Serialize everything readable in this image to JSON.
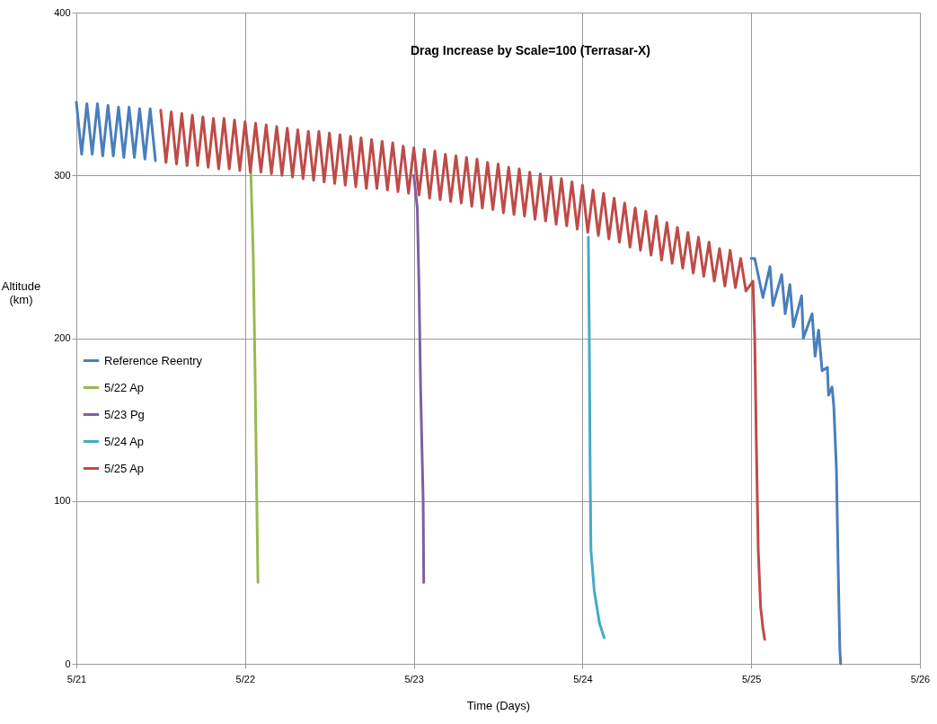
{
  "chart_data": {
    "type": "line",
    "title": "Drag Increase by Scale=100  (Terrasar-X)",
    "xlabel": "Time (Days)",
    "ylabel": "Altitude (km)",
    "xlim": [
      "--05-21",
      "--05-26"
    ],
    "xticks": [
      {
        "value": "--05-21",
        "label": "5/21"
      },
      {
        "value": "--05-22",
        "label": "5/22"
      },
      {
        "value": "--05-23",
        "label": "5/23"
      },
      {
        "value": "--05-24",
        "label": "5/24"
      },
      {
        "value": "--05-25",
        "label": "5/25"
      },
      {
        "value": "--05-26",
        "label": "5/26"
      }
    ],
    "ylim": [
      0,
      400
    ],
    "yticks": [
      0,
      100,
      200,
      300,
      400
    ],
    "grid": true,
    "legend": "left",
    "series": [
      {
        "name": "Reference Reentry",
        "color": "#4a7ebb",
        "x": [
          "--05-21T00:00",
          "--05-21T00:45",
          "--05-21T01:30",
          "--05-21T02:15",
          "--05-21T03:00",
          "--05-21T03:45",
          "--05-21T04:30",
          "--05-21T05:15",
          "--05-21T06:00",
          "--05-21T06:45",
          "--05-21T07:30",
          "--05-21T08:15",
          "--05-21T09:00",
          "--05-21T09:45",
          "--05-21T10:30",
          "--05-21T11:15",
          "--05-21T12:00",
          "--05-25T00:00",
          "--05-25T00:30",
          "--05-25T01:40",
          "--05-25T02:40",
          "--05-25T03:05",
          "--05-25T04:20",
          "--05-25T04:50",
          "--05-25T05:30",
          "--05-25T06:00",
          "--05-25T07:10",
          "--05-25T07:25",
          "--05-25T08:40",
          "--05-25T09:05",
          "--05-25T09:35",
          "--05-25T10:05",
          "--05-25T10:50",
          "--05-25T11:00",
          "--05-25T11:30",
          "--05-25T11:45",
          "--05-25T12:07",
          "--05-25T12:22",
          "--05-25T12:36",
          "--05-25T12:43"
        ],
        "values": [
          345,
          313,
          344,
          313,
          344,
          312,
          343,
          312,
          342,
          311,
          342,
          311,
          341,
          310,
          341,
          309,
          null,
          249,
          249,
          225,
          244,
          220,
          239,
          215,
          233,
          207,
          226,
          200,
          215,
          189,
          205,
          180,
          182,
          165,
          170,
          158,
          120,
          60,
          10,
          0
        ]
      },
      {
        "name": "5/22 Ap",
        "color": "#98b954",
        "x": [
          "--05-22T00:30",
          "--05-22T00:50",
          "--05-22T01:10",
          "--05-22T01:25",
          "--05-22T01:40",
          "--05-22T01:50"
        ],
        "values": [
          318,
          300,
          250,
          180,
          100,
          50
        ]
      },
      {
        "name": "5/23 Pg",
        "color": "#7d60a0",
        "x": [
          "--05-23T00:00",
          "--05-23T00:30",
          "--05-23T00:45",
          "--05-23T00:58",
          "--05-23T01:20",
          "--05-23T01:25"
        ],
        "values": [
          300,
          280,
          230,
          170,
          100,
          50
        ]
      },
      {
        "name": "5/24 Ap",
        "color": "#46aac5",
        "x": [
          "--05-24T00:50",
          "--05-24T00:58",
          "--05-24T01:05",
          "--05-24T01:12",
          "--05-24T01:40",
          "--05-24T02:25",
          "--05-24T03:05"
        ],
        "values": [
          262,
          200,
          120,
          70,
          45,
          25,
          16
        ]
      },
      {
        "name": "5/25 Ap",
        "color": "#be4b48",
        "x": [
          "--05-21T12:00",
          "--05-21T12:45",
          "--05-21T13:30",
          "--05-21T14:15",
          "--05-21T15:00",
          "--05-21T15:45",
          "--05-21T16:30",
          "--05-21T17:15",
          "--05-21T18:00",
          "--05-21T18:45",
          "--05-21T19:30",
          "--05-21T20:15",
          "--05-21T21:00",
          "--05-21T21:45",
          "--05-21T22:30",
          "--05-21T23:15",
          "--05-22T00:00",
          "--05-22T00:45",
          "--05-22T01:30",
          "--05-22T02:15",
          "--05-22T03:00",
          "--05-22T03:45",
          "--05-22T04:30",
          "--05-22T05:15",
          "--05-22T06:00",
          "--05-22T06:45",
          "--05-22T07:30",
          "--05-22T08:15",
          "--05-22T09:00",
          "--05-22T09:45",
          "--05-22T10:30",
          "--05-22T11:15",
          "--05-22T12:00",
          "--05-22T12:45",
          "--05-22T13:30",
          "--05-22T14:15",
          "--05-22T15:00",
          "--05-22T15:45",
          "--05-22T16:30",
          "--05-22T17:15",
          "--05-22T18:00",
          "--05-22T18:45",
          "--05-22T19:30",
          "--05-22T20:15",
          "--05-22T21:00",
          "--05-22T21:45",
          "--05-22T22:30",
          "--05-22T23:15",
          "--05-23T00:00",
          "--05-23T00:45",
          "--05-23T01:30",
          "--05-23T02:15",
          "--05-23T03:00",
          "--05-23T03:45",
          "--05-23T04:30",
          "--05-23T05:15",
          "--05-23T06:00",
          "--05-23T06:45",
          "--05-23T07:30",
          "--05-23T08:15",
          "--05-23T09:00",
          "--05-23T09:45",
          "--05-23T10:30",
          "--05-23T11:15",
          "--05-23T12:00",
          "--05-23T12:45",
          "--05-23T13:30",
          "--05-23T14:15",
          "--05-23T15:00",
          "--05-23T15:45",
          "--05-23T16:30",
          "--05-23T17:15",
          "--05-23T18:00",
          "--05-23T18:45",
          "--05-23T19:30",
          "--05-23T20:15",
          "--05-23T21:00",
          "--05-23T21:45",
          "--05-23T22:30",
          "--05-23T23:15",
          "--05-24T00:00",
          "--05-24T00:45",
          "--05-24T01:30",
          "--05-24T02:15",
          "--05-24T03:00",
          "--05-24T03:45",
          "--05-24T04:30",
          "--05-24T05:15",
          "--05-24T06:00",
          "--05-24T06:45",
          "--05-24T07:30",
          "--05-24T08:15",
          "--05-24T09:00",
          "--05-24T09:45",
          "--05-24T10:30",
          "--05-24T11:15",
          "--05-24T12:00",
          "--05-24T12:45",
          "--05-24T13:30",
          "--05-24T14:15",
          "--05-24T15:00",
          "--05-24T15:45",
          "--05-24T16:30",
          "--05-24T17:15",
          "--05-24T18:00",
          "--05-24T18:45",
          "--05-24T19:30",
          "--05-24T20:15",
          "--05-24T21:00",
          "--05-24T21:45",
          "--05-24T22:30",
          "--05-24T23:15",
          "--05-25T00:15",
          "--05-25T00:30",
          "--05-25T00:45",
          "--05-25T01:00",
          "--05-25T01:20",
          "--05-25T01:40",
          "--05-25T01:55"
        ],
        "values": [
          340,
          308,
          339,
          307,
          338,
          306,
          337,
          306,
          336,
          305,
          335,
          304,
          335,
          304,
          334,
          303,
          333,
          302,
          332,
          302,
          331,
          301,
          330,
          300,
          329,
          299,
          328,
          298,
          327,
          297,
          327,
          296,
          326,
          295,
          325,
          294,
          324,
          293,
          323,
          292,
          322,
          292,
          321,
          291,
          320,
          290,
          318,
          289,
          317,
          288,
          316,
          286,
          315,
          285,
          313,
          284,
          312,
          283,
          311,
          281,
          310,
          280,
          308,
          279,
          307,
          277,
          305,
          276,
          304,
          275,
          302,
          273,
          301,
          272,
          299,
          270,
          298,
          269,
          296,
          267,
          294,
          265,
          291,
          263,
          289,
          261,
          286,
          259,
          283,
          256,
          280,
          254,
          278,
          251,
          275,
          248,
          271,
          246,
          268,
          243,
          265,
          240,
          262,
          238,
          259,
          235,
          255,
          232,
          254,
          231,
          249,
          229,
          235,
          200,
          130,
          70,
          35,
          22,
          15
        ]
      }
    ]
  }
}
